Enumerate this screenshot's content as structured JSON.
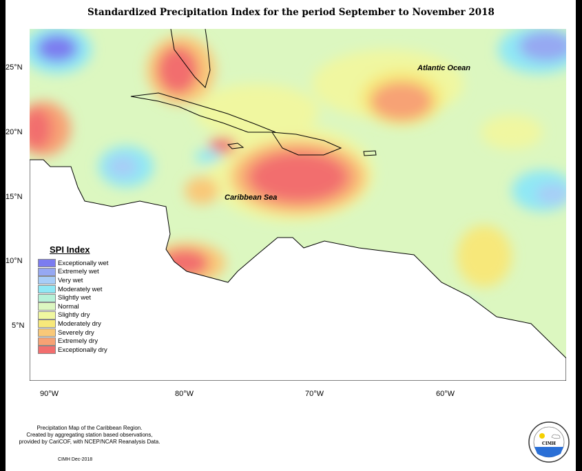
{
  "title": "Standardized Precipitation Index for the period September to November 2018",
  "map_labels": {
    "atlantic": "Atlantic Ocean",
    "caribbean": "Caribbean Sea"
  },
  "lat_ticks": [
    "25°N",
    "20°N",
    "15°N",
    "10°N",
    "5°N"
  ],
  "lon_ticks": [
    "90°W",
    "80°W",
    "70°W",
    "60°W"
  ],
  "legend": {
    "title": "SPI Index",
    "items": [
      {
        "label": "Exceptionally wet",
        "color": "#7b7cf0"
      },
      {
        "label": "Extremely wet",
        "color": "#96a8f2"
      },
      {
        "label": "Very wet",
        "color": "#a8cdf7"
      },
      {
        "label": "Moderately wet",
        "color": "#8fe8f5"
      },
      {
        "label": "Slightly wet",
        "color": "#b6f2d8"
      },
      {
        "label": "Normal",
        "color": "#dcf7c0"
      },
      {
        "label": "Slightly dry",
        "color": "#f0f7a0"
      },
      {
        "label": "Moderately dry",
        "color": "#f7e87a"
      },
      {
        "label": "Severely dry",
        "color": "#f9c878"
      },
      {
        "label": "Extremely dry",
        "color": "#f7a274"
      },
      {
        "label": "Exceptionally dry",
        "color": "#f26e6e"
      }
    ]
  },
  "footer": {
    "line1": "Precipitation Map of the Caribbean Region.",
    "line2": "Created by aggregating station based observations,",
    "line3": "provided by CariCOF, with NCEP/NCAR Reanalysis Data.",
    "credit": "CIMH Dec-2018"
  },
  "logo": {
    "text": "CIMH"
  }
}
